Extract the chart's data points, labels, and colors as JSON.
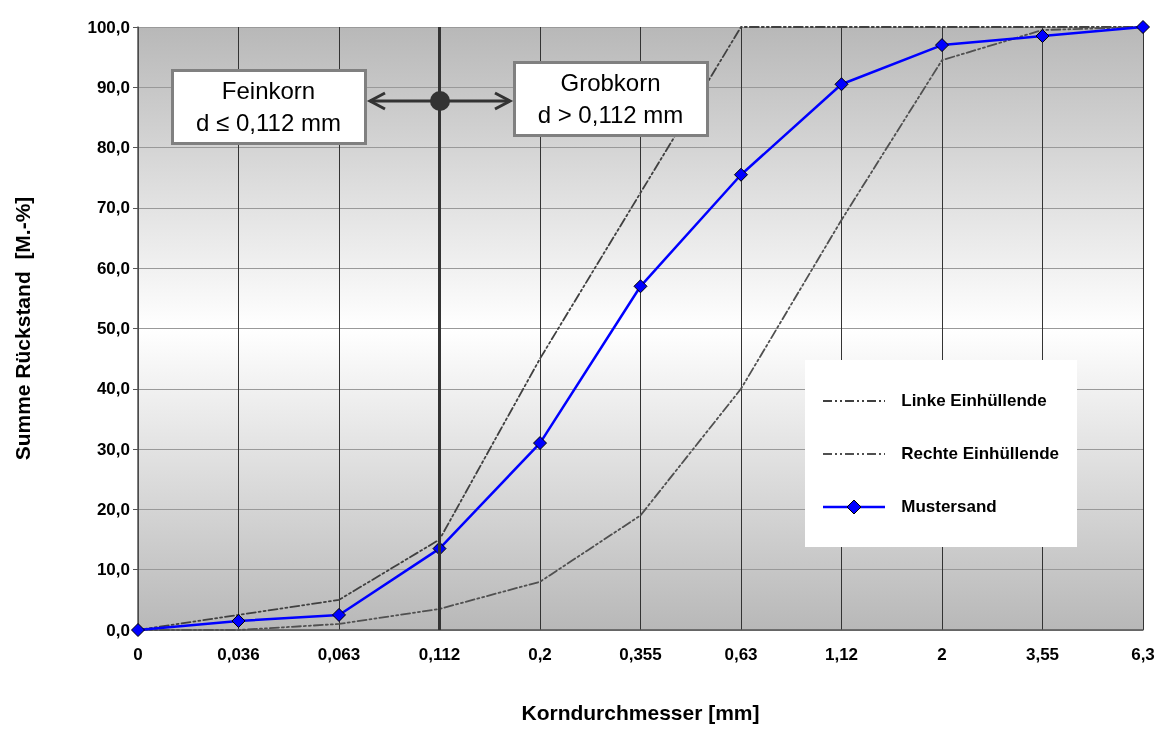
{
  "chart_data": {
    "type": "line",
    "xlabel": "Korndurchmesser [mm]",
    "ylabel": "Summe Rückstand  [M.-%]",
    "categories": [
      "0",
      "0,036",
      "0,063",
      "0,112",
      "0,2",
      "0,355",
      "0,63",
      "1,12",
      "2",
      "3,55",
      "6,3"
    ],
    "series": [
      {
        "name": "Linke Einhüllende",
        "color": "#404040",
        "line_style": "dashed",
        "marker": "none",
        "values": [
          0,
          2.5,
          5,
          15,
          45,
          null,
          100,
          100,
          100,
          100,
          100
        ]
      },
      {
        "name": "Rechte Einhüllende",
        "color": "#505050",
        "line_style": "dashed",
        "marker": "none",
        "values": [
          0,
          0,
          1,
          3.5,
          8,
          19,
          40,
          68,
          94.5,
          99.5,
          100
        ]
      },
      {
        "name": "Mustersand",
        "color": "#0000ff",
        "line_style": "solid",
        "marker": "diamond",
        "values": [
          0,
          1.5,
          2.5,
          13.5,
          31,
          57,
          75.5,
          90.5,
          97,
          98.5,
          100
        ]
      }
    ],
    "ylim": [
      0,
      100
    ],
    "yticks": [
      {
        "value": 0,
        "label": "0,0"
      },
      {
        "value": 10,
        "label": "10,0"
      },
      {
        "value": 20,
        "label": "20,0"
      },
      {
        "value": 30,
        "label": "30,0"
      },
      {
        "value": 40,
        "label": "40,0"
      },
      {
        "value": 50,
        "label": "50,0"
      },
      {
        "value": 60,
        "label": "60,0"
      },
      {
        "value": 70,
        "label": "70,0"
      },
      {
        "value": 80,
        "label": "80,0"
      },
      {
        "value": 90,
        "label": "90,0"
      },
      {
        "value": 100,
        "label": "100,0"
      }
    ],
    "ref_lines": [
      {
        "axis": "x",
        "value": "0,112",
        "color": "#333333"
      }
    ],
    "annotations": [
      "Feinkorn\nd ≤ 0,112 mm",
      "Grobkorn\nd > 0,112 mm"
    ],
    "grid": true,
    "legend": "right"
  }
}
